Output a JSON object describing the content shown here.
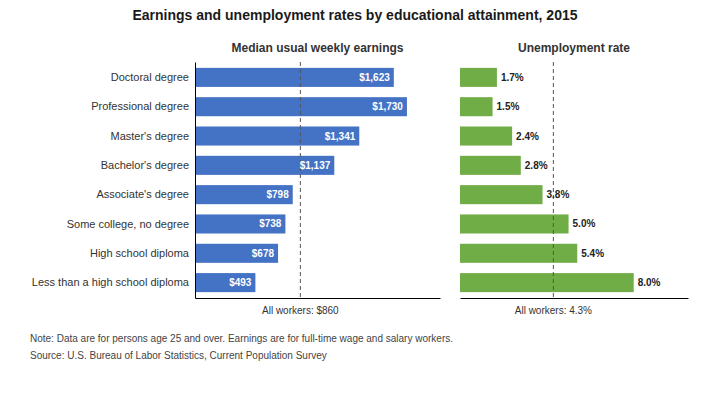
{
  "chart_data": [
    {
      "type": "bar",
      "orientation": "horizontal",
      "title": "Earnings and unemployment rates by educational attainment, 2015",
      "subtitle": "Median usual weekly earnings",
      "categories": [
        "Doctoral degree",
        "Professional degree",
        "Master's degree",
        "Bachelor's degree",
        "Associate's degree",
        "Some college, no degree",
        "High school diploma",
        "Less than a high school diploma"
      ],
      "values": [
        1623,
        1730,
        1341,
        1137,
        798,
        738,
        678,
        493
      ],
      "value_labels": [
        "$1,623",
        "$1,730",
        "$1,341",
        "$1,137",
        "$798",
        "$738",
        "$678",
        "$493"
      ],
      "data_labels": true,
      "color": "#4472C4",
      "xlim": [
        0,
        2000
      ],
      "tick_labels": "y",
      "grid": false,
      "reference_line": {
        "value": 860,
        "label": "All workers: $860"
      },
      "annotations": [
        "Note: Data are for persons age 25 and over. Earnings are for full-time wage and salary workers.",
        "Source: U.S. Bureau of Labor Statistics, Current Population Survey"
      ]
    },
    {
      "type": "bar",
      "orientation": "horizontal",
      "subtitle": "Unemployment rate",
      "values": [
        1.7,
        1.5,
        2.4,
        2.8,
        3.8,
        5.0,
        5.4,
        8.0
      ],
      "value_labels": [
        "1.7%",
        "1.5%",
        "2.4%",
        "2.8%",
        "3.8%",
        "5.0%",
        "5.4%",
        "8.0%"
      ],
      "data_labels": true,
      "color": "#70AD47",
      "xlim": [
        0,
        10.5
      ],
      "tick_labels": false,
      "grid": false,
      "reference_line": {
        "value": 4.3,
        "label": "All workers: 4.3%"
      }
    }
  ]
}
